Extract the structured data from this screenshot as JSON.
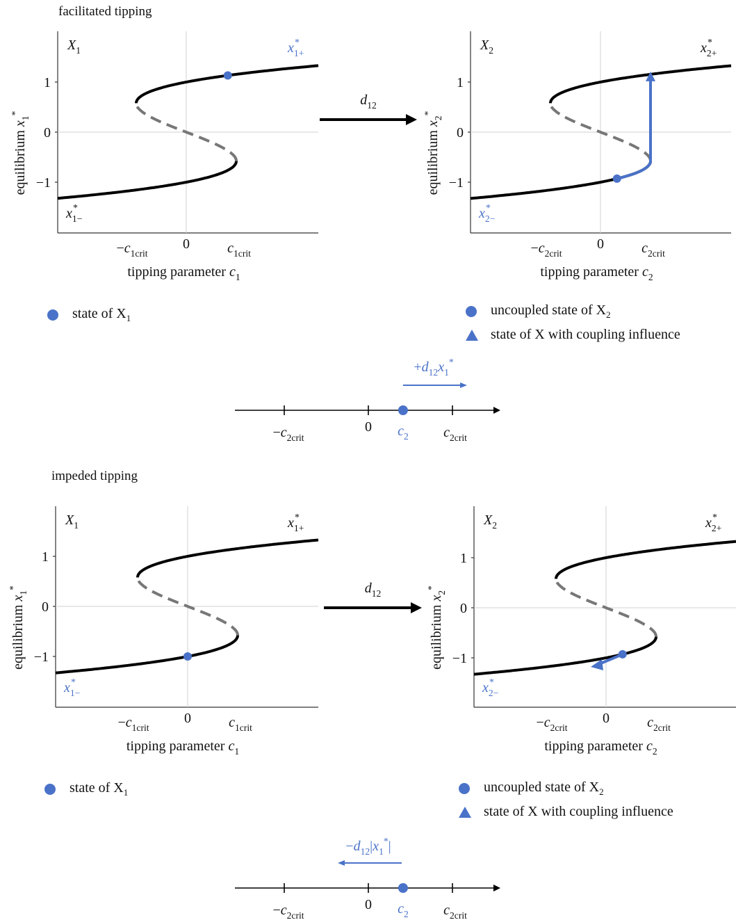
{
  "colors": {
    "blue": "#4A72C8",
    "black": "#000000",
    "gray": "#777777",
    "axis": "#333333",
    "zero": "#d2d2d2"
  },
  "sections": [
    {
      "title": "facilitated tipping",
      "coupling": "d",
      "coupling_sub": "12",
      "left": {
        "panel": "X",
        "panel_sub": "1",
        "upper": "x",
        "upper_sup": "*",
        "upper_sub": "1+",
        "upper_blue": true,
        "lower": "x",
        "lower_sup": "*",
        "lower_sub": "1−",
        "lower_blue": false,
        "ylabel": "equilibrium x",
        "ylabel_sup": "*",
        "ylabel_sub": "1",
        "xlabel": "tipping parameter c",
        "xlabel_sub": "1",
        "ticks_y": [
          "1",
          "0",
          "−1"
        ],
        "tick_neg": "−c",
        "tick_neg_sub": "1",
        "tick_zero": "0",
        "tick_pos": "c",
        "tick_pos_sub": "1",
        "tick_crit": "crit",
        "state_c": 0.83,
        "state_branch": "upper"
      },
      "right": {
        "panel": "X",
        "panel_sub": "2",
        "upper": "x",
        "upper_sup": "*",
        "upper_sub": "2+",
        "upper_blue": false,
        "lower": "x",
        "lower_sup": "*",
        "lower_sub": "2−",
        "lower_blue": true,
        "ylabel": "equilibrium x",
        "ylabel_sup": "*",
        "ylabel_sub": "2",
        "xlabel": "tipping parameter c",
        "xlabel_sub": "2",
        "ticks_y": [
          "1",
          "0",
          "−1"
        ],
        "tick_neg": "−c",
        "tick_neg_sub": "2",
        "tick_zero": "0",
        "tick_pos": "c",
        "tick_pos_sub": "2",
        "tick_crit": "crit",
        "state_c": 0.33,
        "state_branch": "lower",
        "arrow": "up"
      },
      "legend_left": {
        "text": "state of X",
        "sub": "1"
      },
      "legend_right": [
        {
          "text": "uncoupled state of X",
          "sub": "2"
        },
        {
          "text": "state of X with coupling influence"
        }
      ],
      "numberline": {
        "ticks": [
          "−c",
          "0",
          "c"
        ],
        "tick_sub": "2",
        "tick_crit": "crit",
        "c2": "c",
        "c2_sub": "2",
        "c2_value": 0.33,
        "shift": "+d",
        "shift_sub": "12",
        "shift_x": "x",
        "shift_x_sub": "1",
        "shift_x_sup": "*",
        "direction": "right"
      }
    },
    {
      "title": "impeded tipping",
      "coupling": "d",
      "coupling_sub": "12",
      "left": {
        "panel": "X",
        "panel_sub": "1",
        "upper": "x",
        "upper_sup": "*",
        "upper_sub": "1+",
        "upper_blue": false,
        "lower": "x",
        "lower_sup": "*",
        "lower_sub": "1−",
        "lower_blue": true,
        "ylabel": "equilibrium x",
        "ylabel_sup": "*",
        "ylabel_sub": "1",
        "xlabel": "tipping parameter c",
        "xlabel_sub": "1",
        "ticks_y": [
          "1",
          "0",
          "−1"
        ],
        "tick_neg": "−c",
        "tick_neg_sub": "1",
        "tick_zero": "0",
        "tick_pos": "c",
        "tick_pos_sub": "1",
        "tick_crit": "crit",
        "state_c": 0.0,
        "state_branch": "lower"
      },
      "right": {
        "panel": "X",
        "panel_sub": "2",
        "upper": "x",
        "upper_sup": "*",
        "upper_sub": "2+",
        "upper_blue": false,
        "lower": "x",
        "lower_sup": "*",
        "lower_sub": "2−",
        "lower_blue": true,
        "ylabel": "equilibrium x",
        "ylabel_sup": "*",
        "ylabel_sub": "2",
        "xlabel": "tipping parameter c",
        "xlabel_sub": "2",
        "ticks_y": [
          "1",
          "0",
          "−1"
        ],
        "tick_neg": "−c",
        "tick_neg_sub": "2",
        "tick_zero": "0",
        "tick_pos": "c",
        "tick_pos_sub": "2",
        "tick_crit": "crit",
        "state_c": 0.33,
        "state_branch": "lower",
        "arrow": "left"
      },
      "legend_left": {
        "text": "state of X",
        "sub": "1"
      },
      "legend_right": [
        {
          "text": "uncoupled state of X",
          "sub": "2"
        },
        {
          "text": "state of X with coupling influence"
        }
      ],
      "numberline": {
        "ticks": [
          "−c",
          "0",
          "c"
        ],
        "tick_sub": "2",
        "tick_crit": "crit",
        "c2": "c",
        "c2_sub": "2",
        "c2_value": 0.33,
        "shift": "−d",
        "shift_sub": "12",
        "shift_x": "|x",
        "shift_x_sub": "1",
        "shift_x_sup": "*",
        "shift_tail": "|",
        "direction": "left"
      }
    }
  ]
}
